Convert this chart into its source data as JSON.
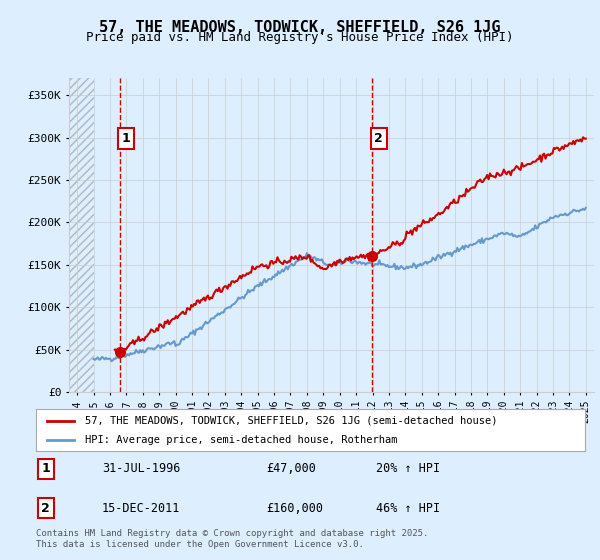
{
  "title": "57, THE MEADOWS, TODWICK, SHEFFIELD, S26 1JG",
  "subtitle": "Price paid vs. HM Land Registry's House Price Index (HPI)",
  "xlabel": "",
  "ylabel": "",
  "ylim": [
    0,
    370000
  ],
  "yticks": [
    0,
    50000,
    100000,
    150000,
    200000,
    250000,
    300000,
    350000
  ],
  "ytick_labels": [
    "£0",
    "£50K",
    "£100K",
    "£150K",
    "£200K",
    "£250K",
    "£300K",
    "£350K"
  ],
  "xlim_year": [
    1993.5,
    2025.5
  ],
  "purchase1_year": 1996.58,
  "purchase1_price": 47000,
  "purchase1_label": "1",
  "purchase2_year": 2011.96,
  "purchase2_price": 160000,
  "purchase2_label": "2",
  "legend_line1": "57, THE MEADOWS, TODWICK, SHEFFIELD, S26 1JG (semi-detached house)",
  "legend_line2": "HPI: Average price, semi-detached house, Rotherham",
  "annotation1_date": "31-JUL-1996",
  "annotation1_price": "£47,000",
  "annotation1_hpi": "20% ↑ HPI",
  "annotation2_date": "15-DEC-2011",
  "annotation2_price": "£160,000",
  "annotation2_hpi": "46% ↑ HPI",
  "footer": "Contains HM Land Registry data © Crown copyright and database right 2025.\nThis data is licensed under the Open Government Licence v3.0.",
  "hpi_color": "#6699cc",
  "price_color": "#cc0000",
  "dashed_line_color": "#cc0000",
  "bg_color": "#ddeeff",
  "plot_bg": "#ffffff",
  "grid_color": "#cccccc"
}
